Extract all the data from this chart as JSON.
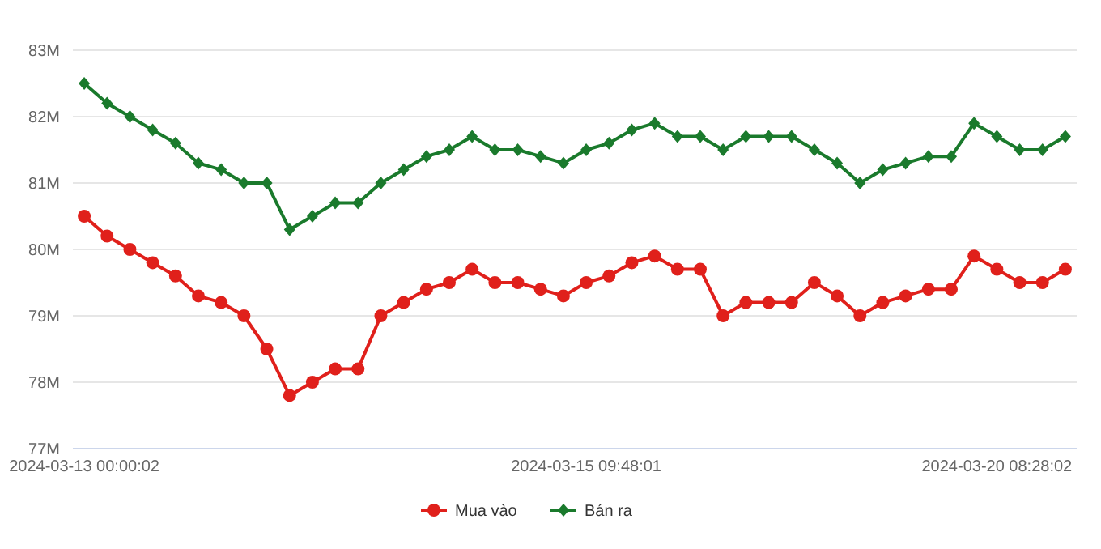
{
  "chart_data": {
    "type": "line",
    "categories": [
      "2024-03-13 00:00:02",
      null,
      null,
      null,
      null,
      null,
      null,
      null,
      null,
      null,
      null,
      null,
      null,
      null,
      null,
      null,
      null,
      null,
      null,
      null,
      null,
      null,
      "2024-03-15 09:48:01",
      null,
      null,
      null,
      null,
      null,
      null,
      null,
      null,
      null,
      null,
      null,
      null,
      null,
      null,
      null,
      null,
      null,
      "2024-03-20 08:28:02",
      null,
      null,
      null
    ],
    "series": [
      {
        "name": "Mua vào",
        "color": "#e0201b",
        "marker": "circle",
        "values": [
          80.5,
          80.2,
          80.0,
          79.8,
          79.6,
          79.3,
          79.2,
          79.0,
          78.5,
          77.8,
          78.0,
          78.2,
          78.2,
          79.0,
          79.2,
          79.4,
          79.5,
          79.7,
          79.5,
          79.5,
          79.4,
          79.3,
          79.5,
          79.6,
          79.8,
          79.9,
          79.7,
          79.7,
          79.0,
          79.2,
          79.2,
          79.2,
          79.5,
          79.3,
          79.0,
          79.2,
          79.3,
          79.4,
          79.4,
          79.9,
          79.7,
          79.5,
          79.5,
          79.7
        ]
      },
      {
        "name": "Bán ra",
        "color": "#1a7a2c",
        "marker": "diamond",
        "values": [
          82.5,
          82.2,
          82.0,
          81.8,
          81.6,
          81.3,
          81.2,
          81.0,
          81.0,
          80.3,
          80.5,
          80.7,
          80.7,
          81.0,
          81.2,
          81.4,
          81.5,
          81.7,
          81.5,
          81.5,
          81.4,
          81.3,
          81.5,
          81.6,
          81.8,
          81.9,
          81.7,
          81.7,
          81.5,
          81.7,
          81.7,
          81.7,
          81.5,
          81.3,
          81.0,
          81.2,
          81.3,
          81.4,
          81.4,
          81.9,
          81.7,
          81.5,
          81.5,
          81.7
        ]
      }
    ],
    "ylim": [
      77,
      83
    ],
    "yticks": [
      {
        "value": 77,
        "label": "77M"
      },
      {
        "value": 78,
        "label": "78M"
      },
      {
        "value": 79,
        "label": "79M"
      },
      {
        "value": 80,
        "label": "80M"
      },
      {
        "value": 81,
        "label": "81M"
      },
      {
        "value": 82,
        "label": "82M"
      },
      {
        "value": 83,
        "label": "83M"
      }
    ],
    "grid": "y",
    "legend": "bottom",
    "line_style": "solid"
  }
}
